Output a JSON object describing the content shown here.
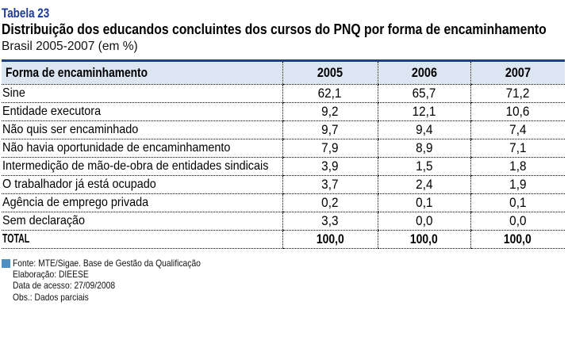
{
  "page": {
    "table_label": "Tabela 23",
    "title": "Distribuição dos educandos concluintes dos cursos do PNQ por forma de encaminhamento",
    "subtitle": "Brasil 2005-2007 (em %)"
  },
  "chart_data": {
    "type": "table",
    "title": "Distribuição dos educandos concluintes dos cursos do PNQ por forma de encaminhamento",
    "subtitle": "Brasil 2005-2007 (em %)",
    "columns": [
      "Forma de encaminhamento",
      "2005",
      "2006",
      "2007"
    ],
    "rows": [
      [
        "Sine",
        "62,1",
        "65,7",
        "71,2"
      ],
      [
        "Entidade executora",
        "9,2",
        "12,1",
        "10,6"
      ],
      [
        "Não quis ser encaminhado",
        "9,7",
        "9,4",
        "7,4"
      ],
      [
        "Não havia oportunidade de encaminhamento",
        "7,9",
        "8,9",
        "7,1"
      ],
      [
        "Intermedição de mão-de-obra de entidades sindicais",
        "3,9",
        "1,5",
        "1,8"
      ],
      [
        "O trabalhador já está ocupado",
        "3,7",
        "2,4",
        "1,9"
      ],
      [
        "Agência de emprego privada",
        "0,2",
        "0,1",
        "0,1"
      ],
      [
        "Sem declaração",
        "3,3",
        "0,0",
        "0,0"
      ],
      [
        "TOTAL",
        "100,0",
        "100,0",
        "100,0"
      ]
    ]
  },
  "table": {
    "header": {
      "label": "Forma de encaminhamento",
      "years": [
        "2005",
        "2006",
        "2007"
      ]
    },
    "rows": [
      {
        "label": "Sine",
        "v2005": "62,1",
        "v2006": "65,7",
        "v2007": "71,2"
      },
      {
        "label": "Entidade executora",
        "v2005": "9,2",
        "v2006": "12,1",
        "v2007": "10,6"
      },
      {
        "label": "Não quis ser encaminhado",
        "v2005": "9,7",
        "v2006": "9,4",
        "v2007": "7,4"
      },
      {
        "label": "Não havia oportunidade de encaminhamento",
        "v2005": "7,9",
        "v2006": "8,9",
        "v2007": "7,1"
      },
      {
        "label": "Intermedição de mão-de-obra de entidades sindicais",
        "v2005": "3,9",
        "v2006": "1,5",
        "v2007": "1,8"
      },
      {
        "label": "O trabalhador já está ocupado",
        "v2005": "3,7",
        "v2006": "2,4",
        "v2007": "1,9"
      },
      {
        "label": "Agência de emprego privada",
        "v2005": "0,2",
        "v2006": "0,1",
        "v2007": "0,1"
      },
      {
        "label": "Sem declaração",
        "v2005": "3,3",
        "v2006": "0,0",
        "v2007": "0,0"
      }
    ],
    "total": {
      "label": "TOTAL",
      "v2005": "100,0",
      "v2006": "100,0",
      "v2007": "100,0"
    }
  },
  "footer": {
    "source": "Fonte: MTE/Sigae. Base de Gestão da Qualificação",
    "elaboration": "Elaboração: DIEESE",
    "access_date": "Data de acesso: 27/09/2008",
    "note": "Obs.: Dados parciais"
  },
  "colors": {
    "accent_blue": "#1c3a96",
    "header_bg": "#dce6f2",
    "source_swatch": "#4e8fc4"
  }
}
